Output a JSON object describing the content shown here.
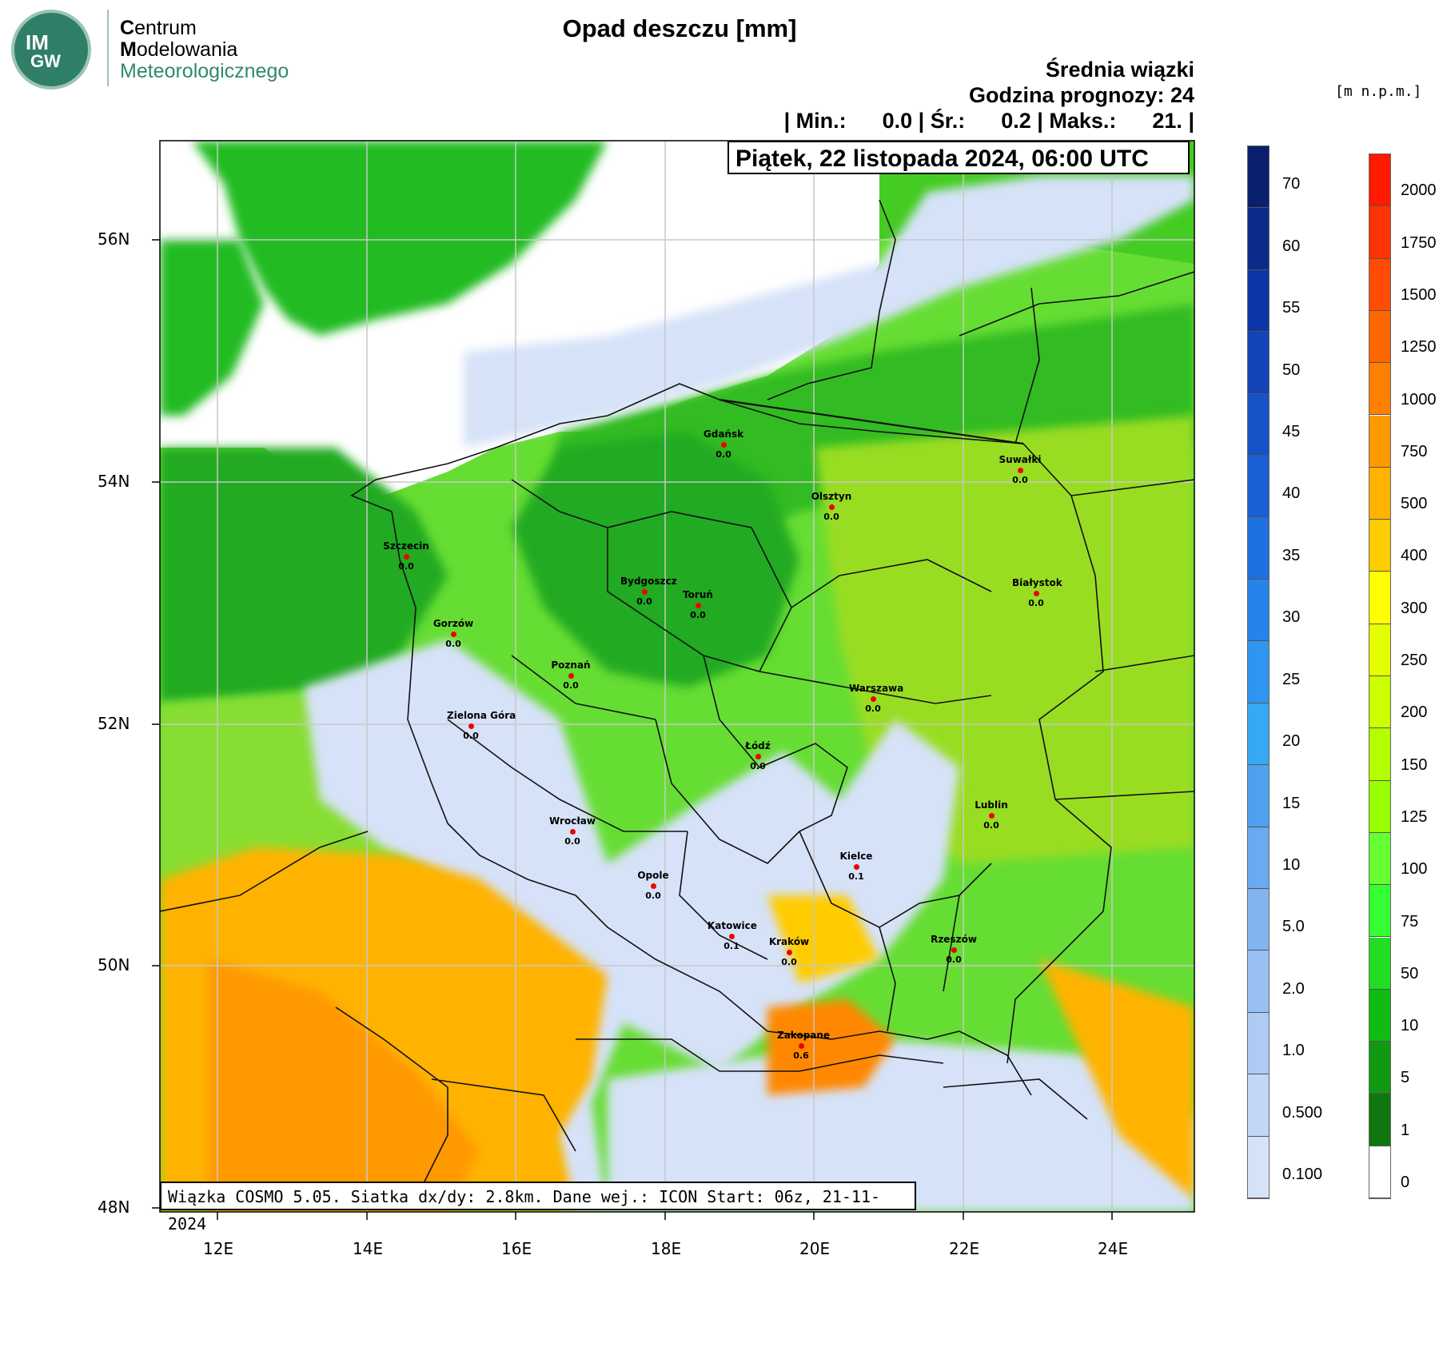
{
  "logo": {
    "badge_top": "IM",
    "badge_bottom": "GW",
    "line1_cap": "C",
    "line1_rest": "entrum",
    "line2_cap": "M",
    "line2_rest": "odelowania",
    "line3_cap": "M",
    "line3_rest": "eteorologicznego"
  },
  "title": "Opad deszczu [mm]",
  "header": {
    "ensemble": "Średnia wiązki",
    "forecast_hour": "Godzina prognozy: 24",
    "stats": "| Min.:      0.0 | Śr.:      0.2 | Maks.:      21. |"
  },
  "date": "Piątek, 22 listopada 2024, 06:00 UTC",
  "info": "Wiązka COSMO 5.05. Siatka dx/dy: 2.8km. Dane wej.: ICON Start: 06z, 21-11-2024",
  "elevation_unit": "[m n.p.m.]",
  "axes": {
    "lat_labels": [
      "56N",
      "54N",
      "52N",
      "50N",
      "48N"
    ],
    "lon_labels": [
      "12E",
      "14E",
      "16E",
      "18E",
      "20E",
      "22E",
      "24E"
    ]
  },
  "precip_scale": {
    "labels": [
      "70",
      "60",
      "55",
      "50",
      "45",
      "40",
      "35",
      "30",
      "25",
      "20",
      "15",
      "10",
      "5.0",
      "2.0",
      "1.0",
      "0.500",
      "0.100"
    ],
    "colors": [
      "#0a1f6e",
      "#0c2a8a",
      "#0e35a6",
      "#1244b8",
      "#1652c8",
      "#1a60d6",
      "#1f70e0",
      "#2683ea",
      "#2e96f0",
      "#36a8f4",
      "#4fa0ee",
      "#6aaaf0",
      "#82b4f2",
      "#98c0f2",
      "#aecbf4",
      "#c3d6f6",
      "#d6e2f8"
    ]
  },
  "elevation_scale": {
    "labels": [
      "2000",
      "1750",
      "1500",
      "1250",
      "1000",
      "750",
      "500",
      "400",
      "300",
      "250",
      "200",
      "150",
      "125",
      "100",
      "75",
      "50",
      "10",
      "5",
      "1",
      "0"
    ],
    "colors": [
      "#ff1a00",
      "#ff3300",
      "#ff4c00",
      "#ff6600",
      "#ff8000",
      "#ff9900",
      "#ffb300",
      "#ffcc00",
      "#ffff00",
      "#e6ff00",
      "#ccff00",
      "#b3ff00",
      "#99ff00",
      "#66ff33",
      "#33ff33",
      "#22dd22",
      "#11bb11",
      "#119911",
      "#117711",
      "#ffffff"
    ]
  },
  "cities": [
    {
      "name": "Gdańsk",
      "value": "0.0"
    },
    {
      "name": "Suwałki",
      "value": "0.0"
    },
    {
      "name": "Olsztyn",
      "value": "0.0"
    },
    {
      "name": "Szczecin",
      "value": "0.0"
    },
    {
      "name": "Bydgoszcz",
      "value": "0.0"
    },
    {
      "name": "Toruń",
      "value": "0.0"
    },
    {
      "name": "Białystok",
      "value": "0.0"
    },
    {
      "name": "Gorzów",
      "value": "0.0"
    },
    {
      "name": "Poznań",
      "value": "0.0"
    },
    {
      "name": "Warszawa",
      "value": "0.0"
    },
    {
      "name": "Zielona Góra",
      "value": "0.0"
    },
    {
      "name": "Łódź",
      "value": "0.0"
    },
    {
      "name": "Lublin",
      "value": "0.0"
    },
    {
      "name": "Wrocław",
      "value": "0.0"
    },
    {
      "name": "Kielce",
      "value": "0.1"
    },
    {
      "name": "Opole",
      "value": "0.0"
    },
    {
      "name": "Katowice",
      "value": "0.1"
    },
    {
      "name": "Kraków",
      "value": "0.0"
    },
    {
      "name": "Rzeszów",
      "value": "0.0"
    },
    {
      "name": "Zakopane",
      "value": "0.6"
    }
  ]
}
